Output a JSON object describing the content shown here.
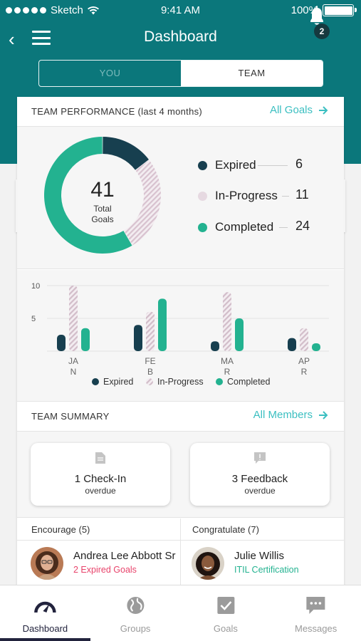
{
  "status_bar": {
    "carrier": "Sketch",
    "time": "9:41 AM",
    "battery": "100%"
  },
  "nav": {
    "title": "Dashboard",
    "notification_count": "2"
  },
  "segment": {
    "you_label": "YOU",
    "team_label": "TEAM",
    "selected": "TEAM"
  },
  "performance": {
    "title": "TEAM PERFORMANCE (last 4 months)",
    "link_label": "All Goals",
    "total": "41",
    "total_label_1": "Total",
    "total_label_2": "Goals",
    "legend": [
      {
        "name": "Expired",
        "value": "6",
        "color": "#173f4f"
      },
      {
        "name": "In-Progress",
        "value": "11",
        "color": "#d8c9d2"
      },
      {
        "name": "Completed",
        "value": "24",
        "color": "#23b290"
      }
    ]
  },
  "chart_data": [
    {
      "type": "pie",
      "categories": [
        "Expired",
        "In-Progress",
        "Completed"
      ],
      "values": [
        6,
        11,
        24
      ],
      "title": "",
      "center_value": 41
    },
    {
      "type": "bar",
      "categories": [
        "JAN",
        "FEB",
        "MAR",
        "APR"
      ],
      "category_lines": [
        [
          "JA",
          "N"
        ],
        [
          "FE",
          "B"
        ],
        [
          "MA",
          "R"
        ],
        [
          "AP",
          "R"
        ]
      ],
      "series": [
        {
          "name": "Expired",
          "values": [
            2.5,
            4,
            1.5,
            2
          ],
          "color": "#173f4f"
        },
        {
          "name": "In-Progress",
          "values": [
            10,
            6,
            9,
            3.5
          ],
          "color": "#d8c9d2"
        },
        {
          "name": "Completed",
          "values": [
            3.5,
            8,
            5,
            1.2
          ],
          "color": "#23b290"
        }
      ],
      "yticks": [
        "10",
        "5"
      ],
      "ylim": [
        0,
        10
      ],
      "legend_position": "bottom"
    }
  ],
  "summary": {
    "title": "TEAM SUMMARY",
    "link_label": "All Members",
    "checkin_value": "1 Check-In",
    "checkin_sub": "overdue",
    "feedback_value": "3 Feedback",
    "feedback_sub": "overdue"
  },
  "people": {
    "encourage_label": "Encourage (5)",
    "congratulate_label": "Congratulate (7)",
    "encourage_name": "Andrea Lee Abbott Sr",
    "encourage_sub": "2 Expired Goals",
    "congratulate_name": "Julie Willis",
    "congratulate_sub": "ITIL Certification"
  },
  "tabs": [
    {
      "label": "Dashboard",
      "icon": "gauge-icon"
    },
    {
      "label": "Groups",
      "icon": "globe-icon"
    },
    {
      "label": "Goals",
      "icon": "checkbox-icon"
    },
    {
      "label": "Messages",
      "icon": "chat-icon"
    }
  ]
}
